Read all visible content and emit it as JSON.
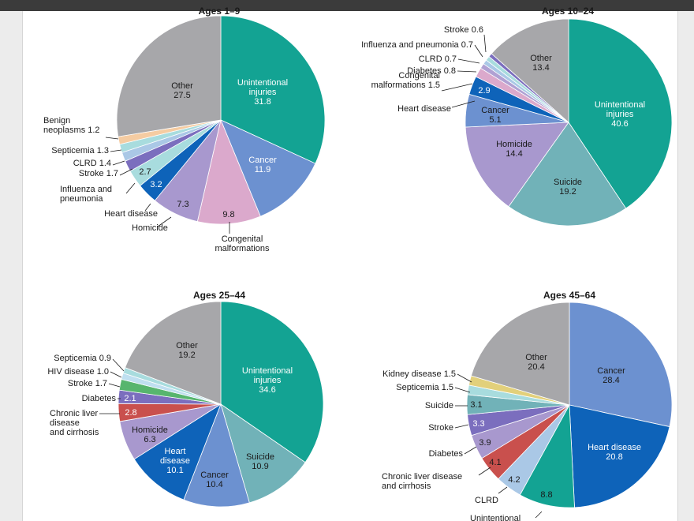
{
  "colors": {
    "teal": "#13a393",
    "steel": "#6c91d0",
    "pink": "#dba9cc",
    "lavender": "#a898ce",
    "blue": "#0e63b9",
    "aqua": "#a8dcde",
    "purple": "#7b6ebe",
    "paleblue": "#aac8e6",
    "sand": "#f5cca2",
    "gray": "#a7a7aa",
    "cadet": "#71b2b8",
    "green": "#57b56e",
    "brick": "#c9504d",
    "lilac": "#b0a1d3",
    "yellow": "#e2d07b",
    "skyblue": "#bfdff0"
  },
  "chart_data": [
    {
      "type": "pie",
      "title": "Ages 1–9",
      "slices": [
        {
          "label": "Unintentional injuries",
          "value": 31.8,
          "value_text": "31.8",
          "color": "teal"
        },
        {
          "label": "Cancer",
          "value": 11.9,
          "value_text": "11.9",
          "color": "steel"
        },
        {
          "label": "Congenital malformations",
          "value": 9.8,
          "value_text": "9.8",
          "color": "pink"
        },
        {
          "label": "Homicide",
          "value": 7.3,
          "value_text": "7.3",
          "color": "lavender"
        },
        {
          "label": "Heart disease",
          "value": 3.2,
          "value_text": "3.2",
          "color": "blue"
        },
        {
          "label": "Influenza and pneumonia",
          "value": 2.7,
          "value_text": "2.7",
          "color": "aqua"
        },
        {
          "label": "Stroke",
          "value": 1.7,
          "value_text": "1.7",
          "color": "purple"
        },
        {
          "label": "CLRD",
          "value": 1.4,
          "value_text": "1.4",
          "color": "paleblue"
        },
        {
          "label": "Septicemia",
          "value": 1.3,
          "value_text": "1.3",
          "color": "aqua"
        },
        {
          "label": "Benign neoplasms",
          "value": 1.2,
          "value_text": "1.2",
          "color": "sand"
        },
        {
          "label": "Other",
          "value": 27.5,
          "value_text": "27.5",
          "color": "gray"
        }
      ]
    },
    {
      "type": "pie",
      "title": "Ages 10–24",
      "slices": [
        {
          "label": "Unintentional injuries",
          "value": 40.6,
          "value_text": "40.6",
          "color": "teal"
        },
        {
          "label": "Suicide",
          "value": 19.2,
          "value_text": "19.2",
          "color": "cadet"
        },
        {
          "label": "Homicide",
          "value": 14.4,
          "value_text": "14.4",
          "color": "lavender"
        },
        {
          "label": "Cancer",
          "value": 5.1,
          "value_text": "5.1",
          "color": "steel"
        },
        {
          "label": "Heart disease",
          "value": 2.9,
          "value_text": "2.9",
          "color": "blue"
        },
        {
          "label": "Congenital malformations",
          "value": 1.5,
          "value_text": "1.5",
          "color": "pink"
        },
        {
          "label": "Diabetes",
          "value": 0.8,
          "value_text": "0.8",
          "color": "lilac"
        },
        {
          "label": "CLRD",
          "value": 0.7,
          "value_text": "0.7",
          "color": "paleblue"
        },
        {
          "label": "Influenza and pneumonia",
          "value": 0.7,
          "value_text": "0.7",
          "color": "aqua"
        },
        {
          "label": "Stroke",
          "value": 0.6,
          "value_text": "0.6",
          "color": "purple"
        },
        {
          "label": "Other",
          "value": 13.4,
          "value_text": "13.4",
          "color": "gray"
        }
      ]
    },
    {
      "type": "pie",
      "title": "Ages 25–44",
      "slices": [
        {
          "label": "Unintentional injuries",
          "value": 34.6,
          "value_text": "34.6",
          "color": "teal"
        },
        {
          "label": "Suicide",
          "value": 10.9,
          "value_text": "10.9",
          "color": "cadet"
        },
        {
          "label": "Cancer",
          "value": 10.4,
          "value_text": "10.4",
          "color": "steel"
        },
        {
          "label": "Heart disease",
          "value": 10.1,
          "value_text": "10.1",
          "color": "blue"
        },
        {
          "label": "Homicide",
          "value": 6.3,
          "value_text": "6.3",
          "color": "lavender"
        },
        {
          "label": "Chronic liver disease and cirrhosis",
          "value": 2.8,
          "value_text": "2.8",
          "color": "brick"
        },
        {
          "label": "Diabetes",
          "value": 2.1,
          "value_text": "2.1",
          "color": "purple"
        },
        {
          "label": "Stroke",
          "value": 1.7,
          "value_text": "1.7",
          "color": "green"
        },
        {
          "label": "HIV disease",
          "value": 1.0,
          "value_text": "1.0",
          "color": "skyblue"
        },
        {
          "label": "Septicemia",
          "value": 0.9,
          "value_text": "0.9",
          "color": "aqua"
        },
        {
          "label": "Other",
          "value": 19.2,
          "value_text": "19.2",
          "color": "gray"
        }
      ]
    },
    {
      "type": "pie",
      "title": "Ages 45–64",
      "slices": [
        {
          "label": "Cancer",
          "value": 28.4,
          "value_text": "28.4",
          "color": "steel"
        },
        {
          "label": "Heart disease",
          "value": 20.8,
          "value_text": "20.8",
          "color": "blue"
        },
        {
          "label": "Unintentional injuries",
          "value": 8.8,
          "value_text": "8.8",
          "color": "teal"
        },
        {
          "label": "CLRD",
          "value": 4.2,
          "value_text": "4.2",
          "color": "paleblue"
        },
        {
          "label": "Chronic liver disease and cirrhosis",
          "value": 4.1,
          "value_text": "4.1",
          "color": "brick"
        },
        {
          "label": "Diabetes",
          "value": 3.9,
          "value_text": "3.9",
          "color": "lavender"
        },
        {
          "label": "Stroke",
          "value": 3.3,
          "value_text": "3.3",
          "color": "purple"
        },
        {
          "label": "Suicide",
          "value": 3.1,
          "value_text": "3.1",
          "color": "cadet"
        },
        {
          "label": "Septicemia",
          "value": 1.5,
          "value_text": "1.5",
          "color": "aqua"
        },
        {
          "label": "Kidney disease",
          "value": 1.5,
          "value_text": "1.5",
          "color": "yellow"
        },
        {
          "label": "Other",
          "value": 20.4,
          "value_text": "20.4",
          "color": "gray"
        }
      ]
    }
  ]
}
